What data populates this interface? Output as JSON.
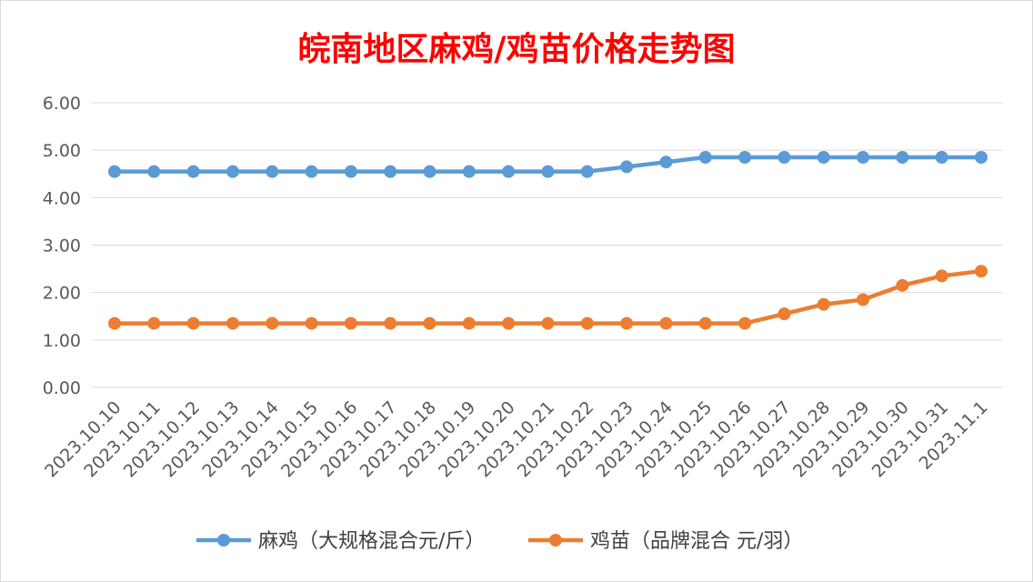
{
  "chart_data": {
    "type": "line",
    "title": "皖南地区麻鸡/鸡苗价格走势图",
    "xlabel": "",
    "ylabel": "",
    "categories": [
      "2023.10.10",
      "2023.10.11",
      "2023.10.12",
      "2023.10.13",
      "2023.10.14",
      "2023.10.15",
      "2023.10.16",
      "2023.10.17",
      "2023.10.18",
      "2023.10.19",
      "2023.10.20",
      "2023.10.21",
      "2023.10.22",
      "2023.10.23",
      "2023.10.24",
      "2023.10.25",
      "2023.10.26",
      "2023.10.27",
      "2023.10.28",
      "2023.10.29",
      "2023.10.30",
      "2023.10.31",
      "2023.11.1"
    ],
    "ylim": [
      0,
      6
    ],
    "yticks": [
      "0.00",
      "1.00",
      "2.00",
      "3.00",
      "4.00",
      "5.00",
      "6.00"
    ],
    "grid": true,
    "legend_position": "bottom",
    "series": [
      {
        "name": "麻鸡（大规格混合元/斤）",
        "color": "#5b9bd5",
        "values": [
          4.55,
          4.55,
          4.55,
          4.55,
          4.55,
          4.55,
          4.55,
          4.55,
          4.55,
          4.55,
          4.55,
          4.55,
          4.55,
          4.65,
          4.75,
          4.85,
          4.85,
          4.85,
          4.85,
          4.85,
          4.85,
          4.85,
          4.85
        ]
      },
      {
        "name": "鸡苗（品牌混合 元/羽）",
        "color": "#ed7d31",
        "values": [
          1.35,
          1.35,
          1.35,
          1.35,
          1.35,
          1.35,
          1.35,
          1.35,
          1.35,
          1.35,
          1.35,
          1.35,
          1.35,
          1.35,
          1.35,
          1.35,
          1.35,
          1.55,
          1.75,
          1.85,
          2.15,
          2.35,
          2.45
        ]
      }
    ]
  }
}
